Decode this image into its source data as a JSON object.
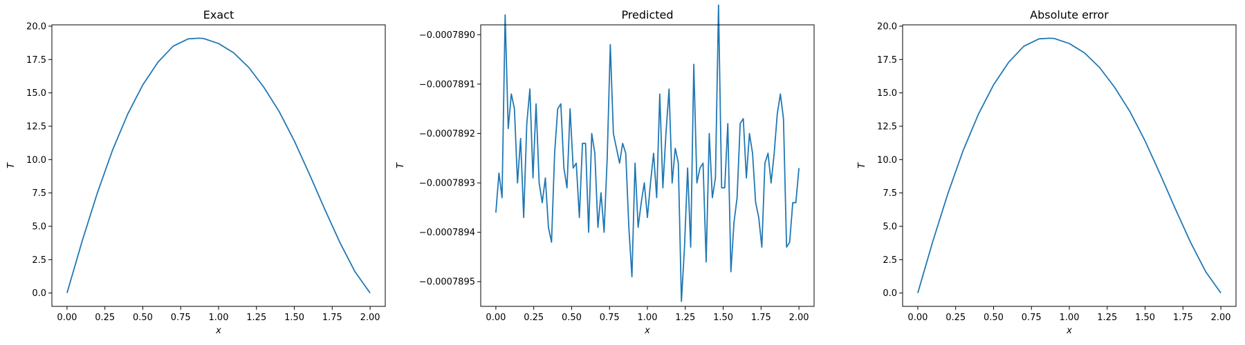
{
  "chart_data": [
    {
      "type": "line",
      "title": "Exact",
      "xlabel": "x",
      "ylabel": "T",
      "xlim": [
        -0.1,
        2.1
      ],
      "ylim": [
        -1.0,
        20.1
      ],
      "xticks": [
        0,
        0.25,
        0.5,
        0.75,
        1.0,
        1.25,
        1.5,
        1.75,
        2.0
      ],
      "xtick_labels": [
        "0.00",
        "0.25",
        "0.50",
        "0.75",
        "1.00",
        "1.25",
        "1.50",
        "1.75",
        "2.00"
      ],
      "yticks": [
        0,
        2.5,
        5,
        7.5,
        10,
        12.5,
        15,
        17.5,
        20
      ],
      "ytick_labels": [
        "0.0",
        "2.5",
        "5.0",
        "7.5",
        "10.0",
        "12.5",
        "15.0",
        "17.5",
        "20.0"
      ],
      "grid": false,
      "series": [
        {
          "color": "#1f77b4",
          "x": [
            0,
            0.1,
            0.2,
            0.3,
            0.4,
            0.5,
            0.6,
            0.7,
            0.8,
            0.87,
            0.9,
            1.0,
            1.1,
            1.2,
            1.3,
            1.4,
            1.5,
            1.6,
            1.7,
            1.8,
            1.9,
            2.0
          ],
          "y": [
            0,
            3.9,
            7.5,
            10.7,
            13.4,
            15.6,
            17.3,
            18.5,
            19.05,
            19.1,
            19.08,
            18.7,
            18.0,
            16.9,
            15.4,
            13.6,
            11.4,
            8.9,
            6.3,
            3.8,
            1.6,
            0
          ]
        }
      ]
    },
    {
      "type": "line",
      "title": "Predicted",
      "xlabel": "x",
      "ylabel": "T",
      "xlim": [
        -0.1,
        2.1
      ],
      "ylim": [
        -0.00078955,
        -0.00078898
      ],
      "xticks": [
        0,
        0.25,
        0.5,
        0.75,
        1.0,
        1.25,
        1.5,
        1.75,
        2.0
      ],
      "xtick_labels": [
        "0.00",
        "0.25",
        "0.50",
        "0.75",
        "1.00",
        "1.25",
        "1.50",
        "1.75",
        "2.00"
      ],
      "yticks": [
        -0.000789,
        -0.0007891,
        -0.0007892,
        -0.0007893,
        -0.0007894,
        -0.0007895
      ],
      "ytick_labels": [
        "−0.0007890",
        "−0.0007891",
        "−0.0007892",
        "−0.0007893",
        "−0.0007894",
        "−0.0007895"
      ],
      "grid": false,
      "series": [
        {
          "color": "#1f77b4",
          "x_start": 0,
          "x_end": 2.0,
          "y": [
            -0.00078936,
            -0.00078928,
            -0.00078933,
            -0.00078896,
            -0.00078919,
            -0.00078912,
            -0.00078915,
            -0.0007893,
            -0.00078921,
            -0.00078937,
            -0.00078918,
            -0.00078911,
            -0.00078929,
            -0.00078914,
            -0.0007893,
            -0.00078934,
            -0.00078929,
            -0.00078939,
            -0.00078942,
            -0.00078924,
            -0.00078915,
            -0.00078914,
            -0.00078927,
            -0.00078931,
            -0.00078915,
            -0.00078927,
            -0.00078926,
            -0.00078937,
            -0.00078922,
            -0.00078922,
            -0.0007894,
            -0.0007892,
            -0.00078924,
            -0.00078939,
            -0.00078932,
            -0.0007894,
            -0.00078925,
            -0.00078902,
            -0.0007892,
            -0.00078923,
            -0.00078926,
            -0.00078922,
            -0.00078924,
            -0.00078939,
            -0.00078949,
            -0.00078926,
            -0.00078939,
            -0.00078934,
            -0.0007893,
            -0.00078937,
            -0.0007893,
            -0.00078924,
            -0.00078933,
            -0.00078912,
            -0.00078931,
            -0.0007892,
            -0.00078911,
            -0.0007893,
            -0.00078923,
            -0.00078926,
            -0.00078954,
            -0.00078943,
            -0.00078927,
            -0.00078943,
            -0.00078906,
            -0.0007893,
            -0.00078927,
            -0.00078926,
            -0.00078946,
            -0.0007892,
            -0.00078933,
            -0.00078929,
            -0.00078894,
            -0.00078931,
            -0.00078931,
            -0.00078918,
            -0.00078948,
            -0.00078938,
            -0.00078933,
            -0.00078918,
            -0.00078917,
            -0.00078929,
            -0.0007892,
            -0.00078924,
            -0.00078934,
            -0.00078937,
            -0.00078943,
            -0.00078926,
            -0.00078924,
            -0.0007893,
            -0.00078924,
            -0.00078916,
            -0.00078912,
            -0.00078917,
            -0.00078943,
            -0.00078942,
            -0.00078934,
            -0.00078934,
            -0.00078927
          ]
        }
      ]
    },
    {
      "type": "line",
      "title": "Absolute error",
      "xlabel": "x",
      "ylabel": "T",
      "xlim": [
        -0.1,
        2.1
      ],
      "ylim": [
        -1.0,
        20.1
      ],
      "xticks": [
        0,
        0.25,
        0.5,
        0.75,
        1.0,
        1.25,
        1.5,
        1.75,
        2.0
      ],
      "xtick_labels": [
        "0.00",
        "0.25",
        "0.50",
        "0.75",
        "1.00",
        "1.25",
        "1.50",
        "1.75",
        "2.00"
      ],
      "yticks": [
        0,
        2.5,
        5,
        7.5,
        10,
        12.5,
        15,
        17.5,
        20
      ],
      "ytick_labels": [
        "0.0",
        "2.5",
        "5.0",
        "7.5",
        "10.0",
        "12.5",
        "15.0",
        "17.5",
        "20.0"
      ],
      "grid": false,
      "series": [
        {
          "color": "#1f77b4",
          "x": [
            0,
            0.1,
            0.2,
            0.3,
            0.4,
            0.5,
            0.6,
            0.7,
            0.8,
            0.87,
            0.9,
            1.0,
            1.1,
            1.2,
            1.3,
            1.4,
            1.5,
            1.6,
            1.7,
            1.8,
            1.9,
            2.0
          ],
          "y": [
            0,
            3.9,
            7.5,
            10.7,
            13.4,
            15.6,
            17.3,
            18.5,
            19.05,
            19.1,
            19.08,
            18.7,
            18.0,
            16.9,
            15.4,
            13.6,
            11.4,
            8.9,
            6.3,
            3.8,
            1.6,
            0
          ]
        }
      ]
    }
  ]
}
